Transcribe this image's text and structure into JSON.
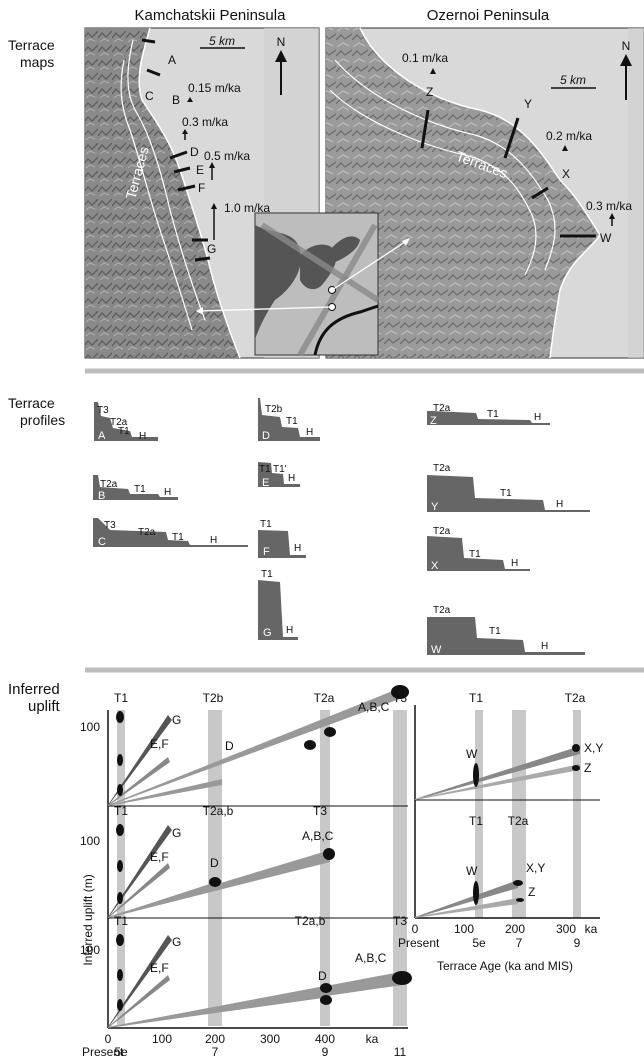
{
  "headers": {
    "left": "Kamchatskii Peninsula",
    "right": "Ozernoi Peninsula"
  },
  "row_labels": {
    "maps": [
      "Terrace",
      "maps"
    ],
    "profiles": [
      "Terrace",
      "profiles"
    ],
    "uplift": [
      "Inferred",
      "uplift"
    ]
  },
  "map_left": {
    "scale": "5 km",
    "north": "N",
    "terraces": "Terraces",
    "points": [
      "A",
      "B",
      "C",
      "D",
      "E",
      "F",
      "G"
    ],
    "rates": [
      "0.15 m/ka",
      "0.3 m/ka",
      "0.5 m/ka",
      "1.0 m/ka"
    ]
  },
  "map_right": {
    "scale": "5 km",
    "north": "N",
    "terraces": "Terraces",
    "points": [
      "Z",
      "Y",
      "X",
      "W"
    ],
    "rates": [
      "0.1 m/ka",
      "0.2 m/ka",
      "0.3 m/ka"
    ]
  },
  "profiles": {
    "A": [
      "T3",
      "T2a",
      "T1",
      "H"
    ],
    "B": [
      "T2a",
      "T1",
      "H"
    ],
    "C": [
      "T3",
      "T2a",
      "T1",
      "H"
    ],
    "D": [
      "T2b",
      "T1",
      "H"
    ],
    "E": [
      "T1",
      "T1'",
      "H"
    ],
    "F": [
      "T1",
      "H"
    ],
    "G": [
      "T1",
      "H"
    ],
    "Z": [
      "T2a",
      "T1",
      "H"
    ],
    "Y": [
      "T2a",
      "T1",
      "H"
    ],
    "X": [
      "T2a",
      "T1",
      "H"
    ],
    "W": [
      "T2a",
      "T1",
      "H"
    ]
  },
  "uplift": {
    "ylabel": "Inferred uplift (m)",
    "xlabel": "Terrace Age (ka and MIS)",
    "y_tick": "100",
    "x_ticks": [
      "0",
      "100",
      "200",
      "300",
      "400",
      "ka"
    ],
    "x_ticks_right": [
      "0",
      "100",
      "200",
      "300",
      "ka"
    ],
    "present": "Present",
    "mis": [
      "5e",
      "7",
      "9",
      "11"
    ],
    "mis_right": [
      "5e",
      "7",
      "9"
    ],
    "left_panels": [
      {
        "bands": [
          "T1",
          "T2b",
          "T2a",
          "T3"
        ],
        "labels": [
          "G",
          "E,F",
          "D",
          "A,B,C"
        ]
      },
      {
        "bands": [
          "T1",
          "T2a,b",
          "T3"
        ],
        "labels": [
          "G",
          "E,F",
          "D",
          "A,B,C"
        ]
      },
      {
        "bands": [
          "T1",
          "T2a,b",
          "T3"
        ],
        "labels": [
          "G",
          "E,F",
          "D",
          "A,B,C"
        ]
      }
    ],
    "right_panels": [
      {
        "bands": [
          "T1",
          "T2a"
        ],
        "labels": [
          "W",
          "X,Y",
          "Z"
        ]
      },
      {
        "bands": [
          "T1",
          "T2a"
        ],
        "labels": [
          "W",
          "X,Y",
          "Z"
        ]
      }
    ]
  },
  "colors": {
    "profile_fill": "#666666",
    "band": "#c8c8c8",
    "bar_dark": "#555555",
    "bar_light": "#999999",
    "sea": "#d9d9d9"
  }
}
